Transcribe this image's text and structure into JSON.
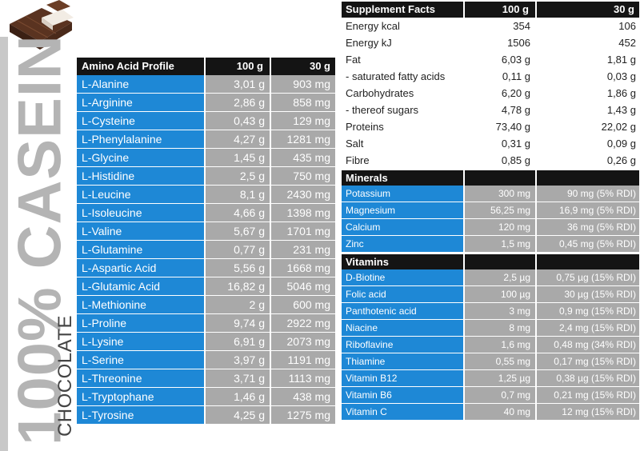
{
  "brand": {
    "title": "100% CASEIN",
    "flavor": "CHOCOLATE"
  },
  "colors": {
    "header_bg": "#141414",
    "name_cell_bg": "#1e88d6",
    "value_cell_bg": "#a9a9a9",
    "brand_gray": "#b4b4b4"
  },
  "amino": {
    "header": [
      "Amino Acid Profile",
      "100 g",
      "30 g"
    ],
    "rows": [
      [
        "L-Alanine",
        "3,01 g",
        "903 mg"
      ],
      [
        "L-Arginine",
        "2,86 g",
        "858 mg"
      ],
      [
        "L-Cysteine",
        "0,43 g",
        "129 mg"
      ],
      [
        "L-Phenylalanine",
        "4,27 g",
        "1281 mg"
      ],
      [
        "L-Glycine",
        "1,45 g",
        "435 mg"
      ],
      [
        "L-Histidine",
        "2,5 g",
        "750 mg"
      ],
      [
        "L-Leucine",
        "8,1 g",
        "2430 mg"
      ],
      [
        "L-Isoleucine",
        "4,66 g",
        "1398 mg"
      ],
      [
        "L-Valine",
        "5,67 g",
        "1701 mg"
      ],
      [
        "L-Glutamine",
        "0,77 g",
        "231 mg"
      ],
      [
        "L-Aspartic Acid",
        "5,56 g",
        "1668 mg"
      ],
      [
        "L-Glutamic Acid",
        "16,82 g",
        "5046 mg"
      ],
      [
        "L-Methionine",
        "2 g",
        "600 mg"
      ],
      [
        "L-Proline",
        "9,74 g",
        "2922 mg"
      ],
      [
        "L-Lysine",
        "6,91 g",
        "2073 mg"
      ],
      [
        "L-Serine",
        "3,97 g",
        "1191 mg"
      ],
      [
        "L-Threonine",
        "3,71 g",
        "1113 mg"
      ],
      [
        "L-Tryptophane",
        "1,46 g",
        "438 mg"
      ],
      [
        "L-Tyrosine",
        "4,25 g",
        "1275 mg"
      ]
    ]
  },
  "supplement": {
    "header": [
      "Supplement Facts",
      "100 g",
      "30 g"
    ],
    "facts": [
      [
        "Energy  kcal",
        "354",
        "106"
      ],
      [
        "Energy  kJ",
        "1506",
        "452"
      ],
      [
        "Fat",
        "6,03 g",
        "1,81 g"
      ],
      [
        "- saturated fatty acids",
        "0,11 g",
        "0,03 g"
      ],
      [
        "Carbohydrates",
        "6,20 g",
        "1,86 g"
      ],
      [
        "- thereof sugars",
        "4,78 g",
        "1,43 g"
      ],
      [
        "Proteins",
        "73,40 g",
        "22,02 g"
      ],
      [
        "Salt",
        "0,31 g",
        "0,09 g"
      ],
      [
        "Fibre",
        "0,85 g",
        "0,26 g"
      ]
    ],
    "minerals_title": "Minerals",
    "minerals": [
      [
        "Potassium",
        "300 mg",
        "90 mg (5% RDI)"
      ],
      [
        "Magnesium",
        "56,25 mg",
        "16,9 mg (5% RDI)"
      ],
      [
        "Calcium",
        "120 mg",
        "36 mg (5% RDI)"
      ],
      [
        "Zinc",
        "1,5 mg",
        "0,45 mg (5% RDI)"
      ]
    ],
    "vitamins_title": "Vitamins",
    "vitamins": [
      [
        "D-Biotine",
        "2,5 µg",
        "0,75 µg (15% RDI)"
      ],
      [
        "Folic acid",
        "100 µg",
        "30 µg (15% RDI)"
      ],
      [
        "Panthotenic acid",
        "3 mg",
        "0,9 mg (15% RDI)"
      ],
      [
        "Niacine",
        "8 mg",
        "2,4 mg (15% RDI)"
      ],
      [
        "Riboflavine",
        "1,6 mg",
        "0,48 mg (34% RDI)"
      ],
      [
        "Thiamine",
        "0,55 mg",
        "0,17 mg (15% RDI)"
      ],
      [
        "Vitamin B12",
        "1,25 µg",
        "0,38 µg (15% RDI)"
      ],
      [
        "Vitamin B6",
        "0,7 mg",
        "0,21 mg (15% RDI)"
      ],
      [
        "Vitamin C",
        "40 mg",
        "12 mg (15% RDI)"
      ]
    ]
  }
}
